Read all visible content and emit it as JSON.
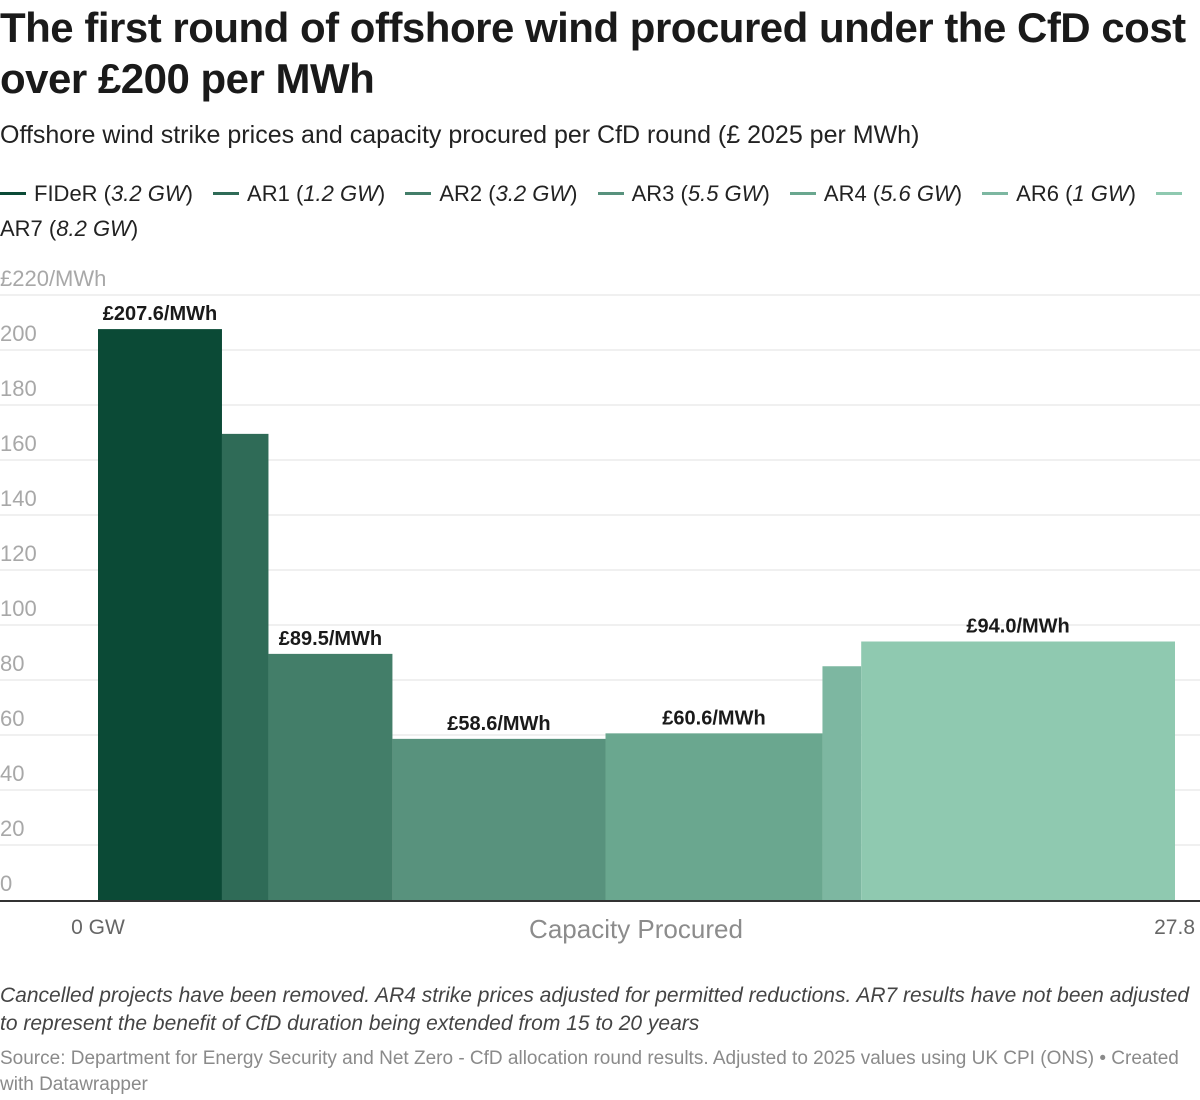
{
  "title": "The first round of offshore wind procured under the CfD cost over £200 per MWh",
  "subtitle": "Offshore wind strike prices and capacity procured per CfD round (£ 2025 per MWh)",
  "footnote": "Cancelled projects have been removed. AR4 strike prices adjusted for permitted reductions. AR7 results have not been adjusted to represent the benefit of CfD duration being extended from 15 to 20 years",
  "source": "Source: Department for Energy Security and Net Zero - CfD allocation round results. Adjusted to 2025 values using UK CPI (ONS) • Created with Datawrapper",
  "chart_data": {
    "type": "bar",
    "variable_width": true,
    "xlabel": "Capacity Procured",
    "x_tick_labels": [
      "0 GW",
      "27.8"
    ],
    "xlim": [
      0,
      27.8
    ],
    "ylabel": "",
    "ylim": [
      0,
      220
    ],
    "y_ticks": [
      0,
      20,
      40,
      60,
      80,
      100,
      120,
      140,
      160,
      180,
      200,
      220
    ],
    "y_tick_labels": [
      "0",
      "20",
      "40",
      "60",
      "80",
      "100",
      "120",
      "140",
      "160",
      "180",
      "200",
      "£220/MWh"
    ],
    "grid": true,
    "legend_position": "top",
    "series": [
      {
        "name": "FIDeR",
        "capacity": "3.2 GW",
        "color": "#0b4a36",
        "bars": [
          {
            "x0": 0.0,
            "x1": 3.2,
            "value": 207.6,
            "label": "£207.6/MWh"
          }
        ]
      },
      {
        "name": "AR1",
        "capacity": "1.2 GW",
        "color": "#2f6b57",
        "bars": [
          {
            "x0": 3.2,
            "x1": 4.4,
            "value": 169.5,
            "label": ""
          }
        ]
      },
      {
        "name": "AR2",
        "capacity": "3.2 GW",
        "color": "#437e69",
        "bars": [
          {
            "x0": 4.4,
            "x1": 7.6,
            "value": 89.5,
            "label": "£89.5/MWh"
          }
        ]
      },
      {
        "name": "AR3",
        "capacity": "5.5 GW",
        "color": "#58927d",
        "bars": [
          {
            "x0": 7.6,
            "x1": 13.1,
            "value": 58.6,
            "label": "£58.6/MWh"
          }
        ]
      },
      {
        "name": "AR4",
        "capacity": "5.6 GW",
        "color": "#6aa78f",
        "bars": [
          {
            "x0": 13.1,
            "x1": 18.7,
            "value": 60.6,
            "label": "£60.6/MWh"
          }
        ]
      },
      {
        "name": "AR6",
        "capacity": "1 GW",
        "color": "#7db7a1",
        "bars": [
          {
            "x0": 18.7,
            "x1": 19.7,
            "value": 85.0,
            "label": ""
          }
        ]
      },
      {
        "name": "AR7",
        "capacity": "8.2 GW",
        "color": "#8fc9b0",
        "bars": [
          {
            "x0": 19.7,
            "x1": 27.8,
            "value": 94.0,
            "label": "£94.0/MWh"
          }
        ]
      }
    ]
  }
}
